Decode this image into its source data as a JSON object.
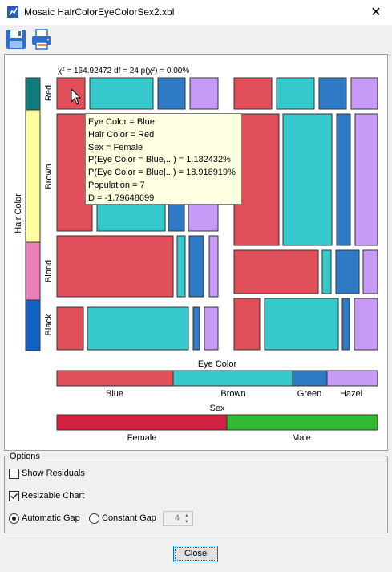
{
  "window": {
    "title": "Mosaic HairColorEyeColorSex2.xbl",
    "close_glyph": "✕"
  },
  "toolbar": {
    "items": [
      {
        "icon": "save-icon"
      },
      {
        "icon": "print-icon"
      }
    ]
  },
  "stat_line": "χ² = 164.92472 df = 24 p(χ²) = 0.00%",
  "tooltip": {
    "lines": [
      "Eye Color = Blue",
      "Hair Color = Red",
      "Sex = Female",
      "P(Eye Color = Blue,...) = 1.182432%",
      "P(Eye Color = Blue|...) = 18.918919%",
      "Population = 7",
      "D = -1.79648699"
    ]
  },
  "colors": {
    "blue": "#e04f5a",
    "brown": "#35c9cc",
    "green": "#2e7ac4",
    "hazel": "#c79af7",
    "black": "#1162c4",
    "blond": "#ec7fb9",
    "brownhair": "#fdfda0",
    "red": "#117a7a",
    "female": "#d42040",
    "male": "#33bb33"
  },
  "chart_data": {
    "type": "mosaic",
    "stat": {
      "chi_square": 164.92472,
      "df": 24,
      "p_chi_square_percent": 0.0
    },
    "axes": {
      "rows": {
        "label": "Hair Color",
        "categories": [
          "Red",
          "Brown",
          "Blond",
          "Black"
        ]
      },
      "cols": {
        "label": "Eye Color",
        "categories": [
          "Blue",
          "Brown",
          "Green",
          "Hazel"
        ]
      },
      "panels": {
        "label": "Sex",
        "categories": [
          "Female",
          "Male"
        ]
      }
    }
  },
  "options": {
    "legend": "Options",
    "show_residuals": {
      "label": "Show Residuals",
      "checked": false
    },
    "resizable_chart": {
      "label": "Resizable Chart",
      "checked": true
    },
    "automatic_gap": {
      "label": "Automatic Gap",
      "selected": true
    },
    "constant_gap": {
      "label": "Constant Gap",
      "selected": false
    },
    "gap_value": "4"
  },
  "close_button": "Close"
}
